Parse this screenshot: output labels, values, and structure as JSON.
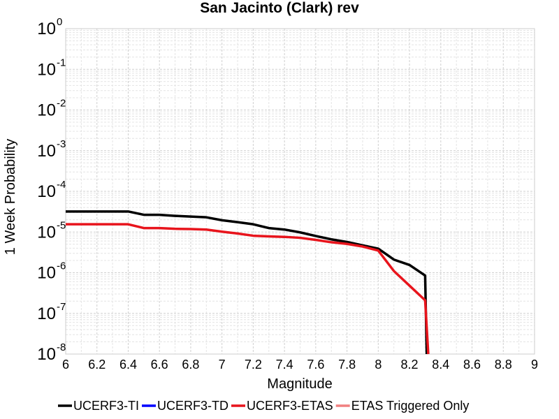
{
  "chart_data": {
    "type": "line",
    "title": "San Jacinto (Clark) rev",
    "xlabel": "Magnitude",
    "ylabel": "1 Week Probability",
    "xlim": [
      6,
      9
    ],
    "ylim": [
      1e-08,
      1
    ],
    "yscale": "log",
    "grid": true,
    "legend_position": "bottom",
    "x_ticks": [
      6,
      6.2,
      6.4,
      6.6,
      6.8,
      7,
      7.2,
      7.4,
      7.6,
      7.8,
      8,
      8.2,
      8.4,
      8.6,
      8.8,
      9
    ],
    "x_tick_labels": [
      "6",
      "6.2",
      "6.4",
      "6.6",
      "6.8",
      "7",
      "7.2",
      "7.4",
      "7.6",
      "7.8",
      "8",
      "8.2",
      "8.4",
      "8.6",
      "8.8",
      "9"
    ],
    "y_ticks": [
      {
        "value": 1,
        "base": "10",
        "exp": "0"
      },
      {
        "value": 0.1,
        "base": "10",
        "exp": "-1"
      },
      {
        "value": 0.01,
        "base": "10",
        "exp": "-2"
      },
      {
        "value": 0.001,
        "base": "10",
        "exp": "-3"
      },
      {
        "value": 0.0001,
        "base": "10",
        "exp": "-4"
      },
      {
        "value": 1e-05,
        "base": "10",
        "exp": "-5"
      },
      {
        "value": 1e-06,
        "base": "10",
        "exp": "-6"
      },
      {
        "value": 1e-07,
        "base": "10",
        "exp": "-7"
      },
      {
        "value": 1e-08,
        "base": "10",
        "exp": "-8"
      }
    ],
    "series": [
      {
        "name": "UCERF3-TI",
        "color": "#000000",
        "x": [
          6.0,
          6.1,
          6.2,
          6.3,
          6.4,
          6.5,
          6.6,
          6.7,
          6.8,
          6.9,
          7.0,
          7.1,
          7.2,
          7.3,
          7.4,
          7.5,
          7.6,
          7.7,
          7.8,
          7.9,
          8.0,
          8.1,
          8.2,
          8.3,
          8.31
        ],
        "y": [
          3.2e-05,
          3.2e-05,
          3.2e-05,
          3.2e-05,
          3.2e-05,
          2.65e-05,
          2.65e-05,
          2.5e-05,
          2.4e-05,
          2.3e-05,
          1.95e-05,
          1.75e-05,
          1.55e-05,
          1.25e-05,
          1.15e-05,
          9.8e-06,
          8e-06,
          6.6e-06,
          5.7e-06,
          4.7e-06,
          3.9e-06,
          2.1e-06,
          1.55e-06,
          8.5e-07,
          1e-08
        ]
      },
      {
        "name": "UCERF3-TD",
        "color": "#0000ff",
        "x": [],
        "y": []
      },
      {
        "name": "UCERF3-ETAS",
        "color": "#e8141c",
        "x": [
          6.0,
          6.1,
          6.2,
          6.3,
          6.4,
          6.5,
          6.6,
          6.7,
          6.8,
          6.9,
          7.0,
          7.1,
          7.2,
          7.3,
          7.4,
          7.5,
          7.6,
          7.7,
          7.8,
          7.9,
          8.0,
          8.1,
          8.2,
          8.3,
          8.32
        ],
        "y": [
          1.55e-05,
          1.55e-05,
          1.55e-05,
          1.55e-05,
          1.55e-05,
          1.25e-05,
          1.25e-05,
          1.2e-05,
          1.18e-05,
          1.15e-05,
          1.02e-05,
          9.2e-06,
          8.1e-06,
          7.8e-06,
          7.6e-06,
          7.2e-06,
          6.4e-06,
          5.6e-06,
          5.1e-06,
          4.4e-06,
          3.5e-06,
          1.1e-06,
          4.8e-07,
          2.1e-07,
          1e-08
        ]
      },
      {
        "name": "ETAS Triggered Only",
        "color": "#f08080",
        "x": [],
        "y": []
      }
    ]
  }
}
